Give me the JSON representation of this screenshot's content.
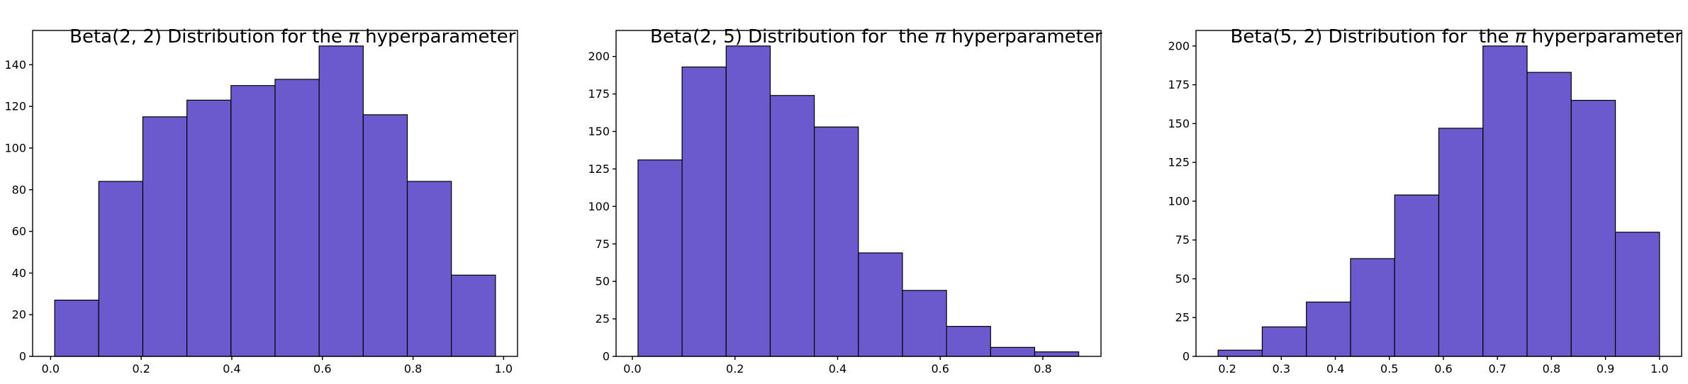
{
  "figure": {
    "background": "#ffffff",
    "bar_fill_color": "#6A5ACD",
    "bar_edge_color": "#000000",
    "axis_color": "#000000",
    "text_color": "#000000"
  },
  "chart_data": [
    {
      "type": "bar",
      "subtype": "histogram",
      "title": "Beta(2, 2) Distribution for the π hyperparameter",
      "title_parts": {
        "before": "Beta(2, 2) Distribution for the ",
        "pi": "π",
        "after": " hyperparameter"
      },
      "xlabel": "",
      "ylabel": "",
      "bins": {
        "start": 0.009,
        "width": 0.0973,
        "count": 10
      },
      "values": [
        27,
        84,
        115,
        123,
        130,
        133,
        149,
        116,
        84,
        39
      ],
      "xticks": [
        0.0,
        0.2,
        0.4,
        0.6,
        0.8,
        1.0
      ],
      "yticks": [
        0,
        20,
        40,
        60,
        80,
        100,
        120,
        140
      ],
      "xlim": [
        -0.0397,
        1.0307
      ],
      "ylim": [
        0,
        156.45
      ],
      "grid": false,
      "legend": false
    },
    {
      "type": "bar",
      "subtype": "histogram",
      "title": "Beta(2, 5) Distribution for  the π hyperparameter",
      "title_parts": {
        "before": "Beta(2, 5) Distribution for  the ",
        "pi": "π",
        "after": " hyperparameter"
      },
      "xlabel": "",
      "ylabel": "",
      "bins": {
        "start": 0.011,
        "width": 0.0859,
        "count": 10
      },
      "values": [
        131,
        193,
        207,
        174,
        153,
        69,
        44,
        20,
        6,
        3
      ],
      "xticks": [
        0.0,
        0.2,
        0.4,
        0.6,
        0.8
      ],
      "yticks": [
        0,
        25,
        50,
        75,
        100,
        125,
        150,
        175,
        200
      ],
      "xlim": [
        -0.0318,
        0.9134
      ],
      "ylim": [
        0,
        217.35
      ],
      "grid": false,
      "legend": false
    },
    {
      "type": "bar",
      "subtype": "histogram",
      "title": "Beta(5, 2) Distribution for  the π hyperparameter",
      "title_parts": {
        "before": "Beta(5, 2) Distribution for  the ",
        "pi": "π",
        "after": " hyperparameter"
      },
      "xlabel": "",
      "ylabel": "",
      "bins": {
        "start": 0.183,
        "width": 0.0817,
        "count": 10
      },
      "values": [
        4,
        19,
        35,
        63,
        104,
        147,
        200,
        183,
        165,
        80
      ],
      "xticks": [
        0.2,
        0.3,
        0.4,
        0.5,
        0.6,
        0.7,
        0.8,
        0.9,
        1.0
      ],
      "yticks": [
        0,
        25,
        50,
        75,
        100,
        125,
        150,
        175,
        200
      ],
      "xlim": [
        0.1421,
        1.0409
      ],
      "ylim": [
        0,
        210
      ],
      "grid": false,
      "legend": false
    }
  ]
}
